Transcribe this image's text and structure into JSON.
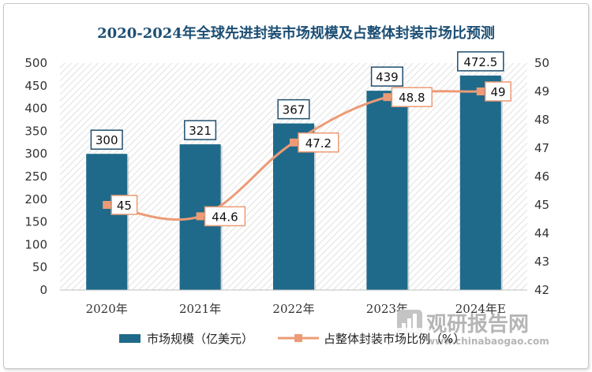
{
  "chart_data": {
    "type": "bar",
    "title": "2020-2024年全球先进封装市场规模及占整体封装市场比预测",
    "categories": [
      "2020年",
      "2021年",
      "2022年",
      "2023年",
      "2024年E"
    ],
    "series": [
      {
        "name": "市场规模（亿美元）",
        "type": "bar",
        "axis": "left",
        "values": [
          300,
          321,
          367,
          439,
          472.5
        ],
        "labels": [
          "300",
          "321",
          "367",
          "439",
          "472.5"
        ],
        "color": "#1f6a8a"
      },
      {
        "name": "占整体封装市场比例（%）",
        "type": "line",
        "axis": "right",
        "values": [
          45,
          44.6,
          47.2,
          48.8,
          49
        ],
        "labels": [
          "45",
          "44.6",
          "47.2",
          "48.8",
          "49"
        ],
        "color": "#ec9b76"
      }
    ],
    "y_left": {
      "min": 0,
      "max": 500,
      "step": 50,
      "ticks": [
        "0",
        "50",
        "100",
        "150",
        "200",
        "250",
        "300",
        "350",
        "400",
        "450",
        "500"
      ]
    },
    "y_right": {
      "min": 42,
      "max": 50,
      "step": 1,
      "ticks": [
        "42",
        "43",
        "44",
        "45",
        "46",
        "47",
        "48",
        "49",
        "50"
      ]
    },
    "grid": false,
    "legend": "bottom",
    "colors": {
      "title": "#1c4e74",
      "bar": "#1f6a8a",
      "line": "#ec9b76",
      "bar_label_border": "#1f4e6e",
      "line_label_border": "#ec9b76"
    }
  },
  "watermark": {
    "brand": "观研报告网",
    "url": "www.chinabaogao.com",
    "icon": "chart-logo-icon"
  }
}
